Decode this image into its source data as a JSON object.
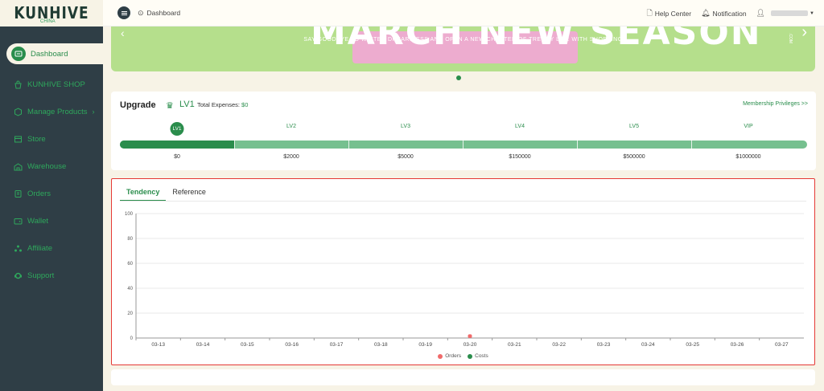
{
  "logo": {
    "text": "KUNHIVE",
    "sub": "CHINA"
  },
  "sidebar": {
    "items": [
      {
        "label": "Dashboard",
        "icon": "dashboard-icon"
      },
      {
        "label": "KUNHIVE SHOP",
        "icon": "shop-icon"
      },
      {
        "label": "Manage Products",
        "icon": "products-icon"
      },
      {
        "label": "Store",
        "icon": "store-icon"
      },
      {
        "label": "Warehouse",
        "icon": "warehouse-icon"
      },
      {
        "label": "Orders",
        "icon": "orders-icon"
      },
      {
        "label": "Wallet",
        "icon": "wallet-icon"
      },
      {
        "label": "Affiliate",
        "icon": "affiliate-icon"
      },
      {
        "label": "Support",
        "icon": "support-icon"
      }
    ]
  },
  "header": {
    "breadcrumb": "Dashboard",
    "help": "Help Center",
    "notification": "Notification"
  },
  "banner": {
    "headline": "MARCH NEW SEASON",
    "subtitle": "SAY GOODBYE TO WINTER DREARINESS AND OPEN A NEW CHAPTER OF TRENDY LIFE WITH SHOPPING",
    "side_text": ".COM"
  },
  "upgrade": {
    "title": "Upgrade",
    "current_level": "LV1",
    "expenses_label": "Total Expenses:",
    "expenses_value": "$0",
    "privileges_link": "Membership Privileges >>",
    "levels": [
      {
        "name": "LV1",
        "amount": "$0"
      },
      {
        "name": "LV2",
        "amount": "$2000"
      },
      {
        "name": "LV3",
        "amount": "$5000"
      },
      {
        "name": "LV4",
        "amount": "$150000"
      },
      {
        "name": "LV5",
        "amount": "$500000"
      },
      {
        "name": "VIP",
        "amount": "$1000000"
      }
    ],
    "progress_fraction": 0.167,
    "colors": {
      "accent": "#2a8d4c",
      "bar": "#76c08f"
    }
  },
  "tabs": {
    "tendency": "Tendency",
    "reference": "Reference"
  },
  "chart_data": {
    "type": "line",
    "x": [
      "03-13",
      "03-14",
      "03-15",
      "03-16",
      "03-17",
      "03-18",
      "03-19",
      "03-20",
      "03-21",
      "03-22",
      "03-23",
      "03-24",
      "03-25",
      "03-26",
      "03-27"
    ],
    "series": [
      {
        "name": "Orders",
        "color": "#f06a6a",
        "values": [
          0,
          0,
          0,
          0,
          0,
          0,
          0,
          3,
          0,
          0,
          0,
          0,
          0,
          0,
          0
        ]
      },
      {
        "name": "Costs",
        "color": "#2a8d4c",
        "values": [
          0,
          0,
          0,
          0,
          0,
          0,
          0,
          0,
          0,
          0,
          0,
          0,
          0,
          0,
          0
        ]
      }
    ],
    "yticks": [
      0,
      20,
      40,
      60,
      80,
      100
    ],
    "ylim": [
      0,
      100
    ],
    "grid": true,
    "legend": "bottom-center"
  }
}
